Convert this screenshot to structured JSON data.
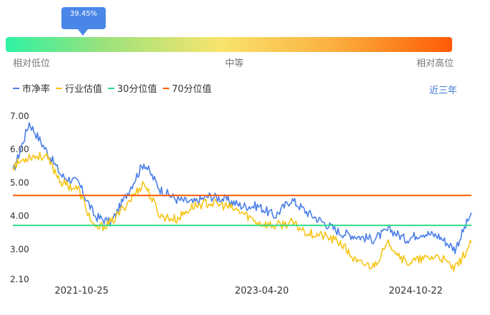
{
  "gauge": {
    "percentile_label": "39.45%",
    "percentile": 39.45,
    "labels": {
      "low": "相对低位",
      "mid": "中等",
      "high": "相对高位"
    }
  },
  "legend": [
    {
      "name": "市净率",
      "color": "#4a7fe8"
    },
    {
      "name": "行业估值",
      "color": "#f5c518"
    },
    {
      "name": "30分位值",
      "color": "#2edb85"
    },
    {
      "name": "70分位值",
      "color": "#ff5a05"
    }
  ],
  "range_link": "近三年",
  "chart_data": {
    "type": "line",
    "ylim": [
      2.1,
      7.0
    ],
    "yticks": [
      "7.00",
      "6.00",
      "5.00",
      "4.00",
      "3.00",
      "2.10"
    ],
    "ytick_values": [
      7.0,
      6.0,
      5.0,
      4.0,
      3.0,
      2.1
    ],
    "xticks": [
      "2021-10-25",
      "2023-04-20",
      "2024-10-22"
    ],
    "x": [
      "2021-03",
      "2021-05",
      "2021-07",
      "2021-09",
      "2021-10",
      "2021-11",
      "2022-01",
      "2022-03",
      "2022-04",
      "2022-05",
      "2022-07",
      "2022-09",
      "2022-11",
      "2023-01",
      "2023-03",
      "2023-04",
      "2023-06",
      "2023-08",
      "2023-10",
      "2023-12",
      "2024-02",
      "2024-04",
      "2024-06",
      "2024-08",
      "2024-10",
      "2024-12",
      "2025-02",
      "2025-03",
      "2025-04"
    ],
    "series": [
      {
        "name": "市净率",
        "color": "#4a7fe8",
        "values": [
          5.3,
          6.8,
          6.0,
          5.2,
          5.0,
          4.0,
          3.8,
          4.7,
          5.6,
          4.8,
          4.5,
          4.4,
          4.6,
          4.5,
          4.3,
          4.3,
          4.0,
          4.5,
          4.1,
          3.8,
          3.5,
          3.4,
          3.3,
          3.6,
          3.3,
          3.5,
          3.4,
          3.0,
          4.1
        ]
      },
      {
        "name": "行业估值",
        "color": "#f5c518",
        "values": [
          5.5,
          5.8,
          5.8,
          5.0,
          4.8,
          3.6,
          3.8,
          4.4,
          5.0,
          4.0,
          3.9,
          4.3,
          4.4,
          4.3,
          4.1,
          3.8,
          3.7,
          3.8,
          3.5,
          3.4,
          3.2,
          2.6,
          2.5,
          3.2,
          2.6,
          2.7,
          2.8,
          2.4,
          3.2
        ]
      },
      {
        "name": "30分位值",
        "color": "#2edb85",
        "constant": 3.72
      },
      {
        "name": "70分位值",
        "color": "#ff5a05",
        "constant": 4.62
      }
    ]
  }
}
